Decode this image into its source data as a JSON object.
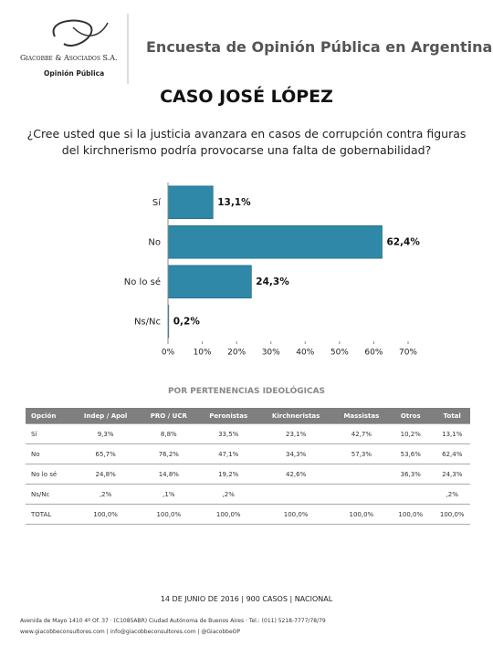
{
  "logo": {
    "name": "Giacobbe & Asociados S.A.",
    "tagline": "Opinión Pública"
  },
  "header": {
    "title": "Encuesta de Opinión Pública en Argentina"
  },
  "case_title": "CASO JOSÉ LÓPEZ",
  "question": [
    "¿Cree usted que si la justicia avanzara en casos de corrupción contra figuras",
    "del kirchnerismo podría provocarse una falta de gobernabilidad?"
  ],
  "chart_data": {
    "type": "bar",
    "orientation": "horizontal",
    "categories": [
      "Sí",
      "No",
      "No lo sé",
      "Ns/Nc"
    ],
    "values": [
      13.1,
      62.4,
      24.3,
      0.2
    ],
    "value_labels": [
      "13,1%",
      "62,4%",
      "24,3%",
      "0,2%"
    ],
    "color": "#2f88a7",
    "xlim": [
      0,
      70
    ],
    "xticks": [
      {
        "value": 0,
        "label": "0%"
      },
      {
        "value": 10,
        "label": "10%"
      },
      {
        "value": 20,
        "label": "20%"
      },
      {
        "value": 30,
        "label": "30%"
      },
      {
        "value": 40,
        "label": "40%"
      },
      {
        "value": 50,
        "label": "50%"
      },
      {
        "value": 60,
        "label": "60%"
      },
      {
        "value": 70,
        "label": "70%"
      }
    ]
  },
  "table": {
    "title": "POR PERTENENCIAS IDEOLÓGICAS",
    "header": [
      "Opción",
      "Indep / Apol",
      "PRO / UCR",
      "Peronistas",
      "Kirchneristas",
      "Massistas",
      "Otros",
      "Total"
    ],
    "rows": [
      [
        "Sí",
        "9,3%",
        "8,8%",
        "33,5%",
        "23,1%",
        "42,7%",
        "10,2%",
        "13,1%"
      ],
      [
        "No",
        "65,7%",
        "76,2%",
        "47,1%",
        "34,3%",
        "57,3%",
        "53,6%",
        "62,4%"
      ],
      [
        "No lo sé",
        "24,8%",
        "14,8%",
        "19,2%",
        "42,6%",
        null,
        "36,3%",
        "24,3%"
      ],
      [
        "Ns/Nc",
        ",2%",
        ",1%",
        ",2%",
        null,
        null,
        null,
        ",2%"
      ],
      [
        "TOTAL",
        "100,0%",
        "100,0%",
        "100,0%",
        "100,0%",
        "100,0%",
        "100,0%",
        "100,0%"
      ]
    ]
  },
  "footer": {
    "info": "14 DE JUNIO DE 2016 | 900 CASOS | NACIONAL",
    "address": "Avenida de Mayo 1410 4º Of. 37 · (C1085ABR) Ciudad Autónoma de Buenos Aires · Tel.: (011) 5218-7777/78/79",
    "web": "www.giacobbeconsultores.com | info@giacobbeconsultores.com | @GiacobbeOP"
  }
}
